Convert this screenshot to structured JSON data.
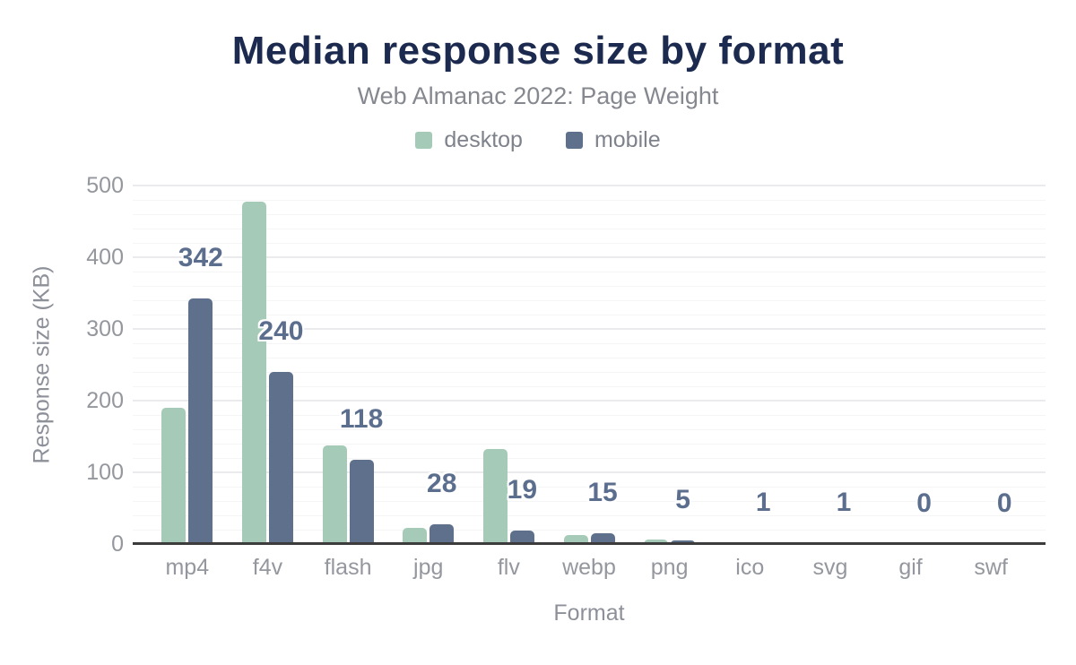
{
  "chart_data": {
    "type": "bar",
    "title": "Median response size by format",
    "subtitle": "Web Almanac 2022: Page Weight",
    "categories": [
      "mp4",
      "f4v",
      "flash",
      "jpg",
      "flv",
      "webp",
      "png",
      "ico",
      "svg",
      "gif",
      "swf"
    ],
    "series": [
      {
        "name": "desktop",
        "color": "#a5cab7",
        "values": [
          190,
          478,
          138,
          22,
          133,
          12,
          6,
          1,
          1,
          0,
          0
        ],
        "show_data_labels": false
      },
      {
        "name": "mobile",
        "color": "#5e708c",
        "values": [
          342,
          240,
          118,
          28,
          19,
          15,
          5,
          1,
          1,
          0,
          0
        ],
        "show_data_labels": true
      }
    ],
    "data_labels_shown": [
      342,
      240,
      118,
      28,
      19,
      15,
      5,
      1,
      1,
      0,
      0
    ],
    "xlabel": "Format",
    "ylabel": "Response size (KB)",
    "ylim": [
      0,
      500
    ],
    "yticks": [
      0,
      100,
      200,
      300,
      400,
      500
    ],
    "minor_gridline_step_kb": 20,
    "grid": true,
    "legend_position": "top"
  },
  "colors": {
    "title": "#1b2a4e",
    "subtitle": "#85888f",
    "axis_text": "#94979e",
    "axis_line": "#3c3c3c",
    "desktop_series": "#a5cab7",
    "mobile_series": "#5e708c",
    "data_label": "#5c6e8e"
  }
}
